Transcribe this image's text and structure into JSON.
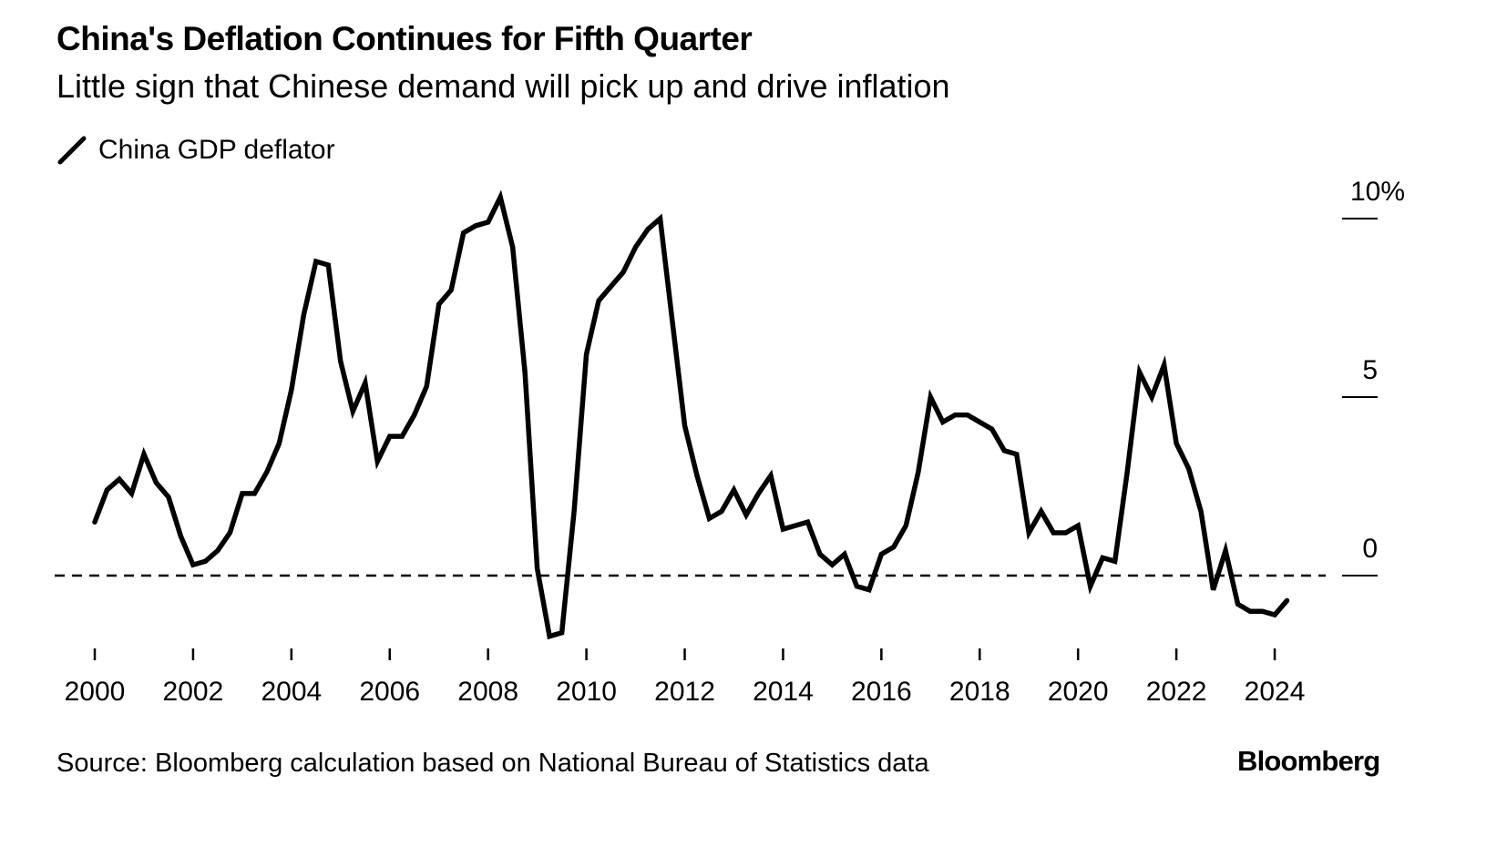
{
  "header": {
    "title": "China's Deflation Continues for Fifth Quarter",
    "subtitle": "Little sign that Chinese demand will pick up and drive inflation"
  },
  "footer": {
    "source": "Source: Bloomberg calculation based on National Bureau of Statistics data",
    "brand": "Bloomberg"
  },
  "chart_data": {
    "type": "line",
    "title": "China's Deflation Continues for Fifth Quarter",
    "subtitle": "Little sign that Chinese demand will pick up and drive inflation",
    "xlabel": "",
    "ylabel": "",
    "legend": {
      "placement": "top-left",
      "entries": [
        "China GDP deflator"
      ]
    },
    "x_start": 2000,
    "x_step": 0.25,
    "xlim": [
      1999.8,
      2024.9
    ],
    "ylim": [
      -2.2,
      11
    ],
    "x_ticks": [
      2000,
      2002,
      2004,
      2006,
      2008,
      2010,
      2012,
      2014,
      2016,
      2018,
      2020,
      2022,
      2024
    ],
    "x_tick_labels": [
      "2000",
      "2002",
      "2004",
      "2006",
      "2008",
      "2010",
      "2012",
      "2014",
      "2016",
      "2018",
      "2020",
      "2022",
      "2024"
    ],
    "y_ticks": [
      10,
      5,
      0
    ],
    "y_tick_labels": [
      "10%",
      "5",
      "0"
    ],
    "reference_line": 0,
    "grid": false,
    "series": [
      {
        "name": "China GDP deflator",
        "color": "#000000",
        "values": [
          1.5,
          2.4,
          2.7,
          2.3,
          3.4,
          2.6,
          2.2,
          1.1,
          0.3,
          0.4,
          0.7,
          1.2,
          2.3,
          2.3,
          2.9,
          3.7,
          5.2,
          7.3,
          8.8,
          8.7,
          6.0,
          4.6,
          5.4,
          3.2,
          3.9,
          3.9,
          4.5,
          5.3,
          7.6,
          8.0,
          9.6,
          9.8,
          9.9,
          10.6,
          9.2,
          5.7,
          0.2,
          -1.7,
          -1.6,
          1.8,
          6.2,
          7.7,
          8.1,
          8.5,
          9.2,
          9.7,
          10.0,
          7.1,
          4.2,
          2.8,
          1.6,
          1.8,
          2.4,
          1.7,
          2.3,
          2.8,
          1.3,
          1.4,
          1.5,
          0.6,
          0.3,
          0.6,
          -0.3,
          -0.4,
          0.6,
          0.8,
          1.4,
          2.9,
          5.0,
          4.3,
          4.5,
          4.5,
          4.3,
          4.1,
          3.5,
          3.4,
          1.2,
          1.8,
          1.2,
          1.2,
          1.4,
          -0.3,
          0.5,
          0.4,
          2.9,
          5.7,
          5.0,
          5.9,
          3.7,
          3.0,
          1.8,
          -0.4,
          0.7,
          -0.8,
          -1.0,
          -1.0,
          -1.1,
          -0.7
        ]
      }
    ]
  }
}
